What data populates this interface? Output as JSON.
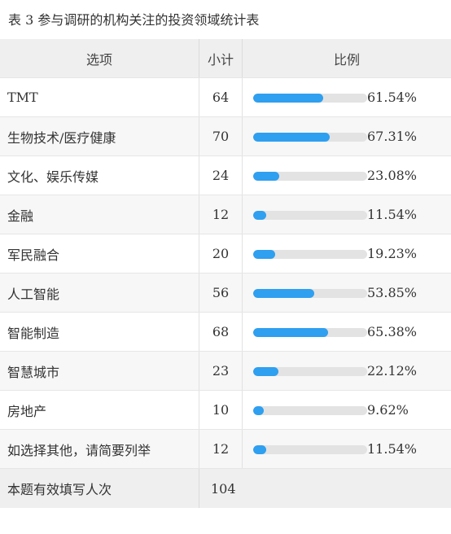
{
  "caption": "表 3  参与调研的机构关注的投资领域统计表",
  "header": {
    "col_name": "选项",
    "col_count": "小计",
    "col_ratio": "比例"
  },
  "rows": [
    {
      "label": "TMT",
      "count": "64",
      "percent": "61.54%",
      "fraction": 0.6154
    },
    {
      "label": "生物技术/医疗健康",
      "count": "70",
      "percent": "67.31%",
      "fraction": 0.6731
    },
    {
      "label": "文化、娱乐传媒",
      "count": "24",
      "percent": "23.08%",
      "fraction": 0.2308
    },
    {
      "label": "金融",
      "count": "12",
      "percent": "11.54%",
      "fraction": 0.1154
    },
    {
      "label": "军民融合",
      "count": "20",
      "percent": "19.23%",
      "fraction": 0.1923
    },
    {
      "label": "人工智能",
      "count": "56",
      "percent": "53.85%",
      "fraction": 0.5385
    },
    {
      "label": "智能制造",
      "count": "68",
      "percent": "65.38%",
      "fraction": 0.6538
    },
    {
      "label": "智慧城市",
      "count": "23",
      "percent": "22.12%",
      "fraction": 0.2212
    },
    {
      "label": "房地产",
      "count": "10",
      "percent": "9.62%",
      "fraction": 0.0962
    },
    {
      "label": "如选择其他，请简要列举",
      "count": "12",
      "percent": "11.54%",
      "fraction": 0.1154
    }
  ],
  "footer": {
    "label": "本题有效填写人次",
    "count": "104"
  },
  "colors": {
    "bar_fill": "#2f9ff0",
    "bar_track": "#e3e3e3"
  }
}
